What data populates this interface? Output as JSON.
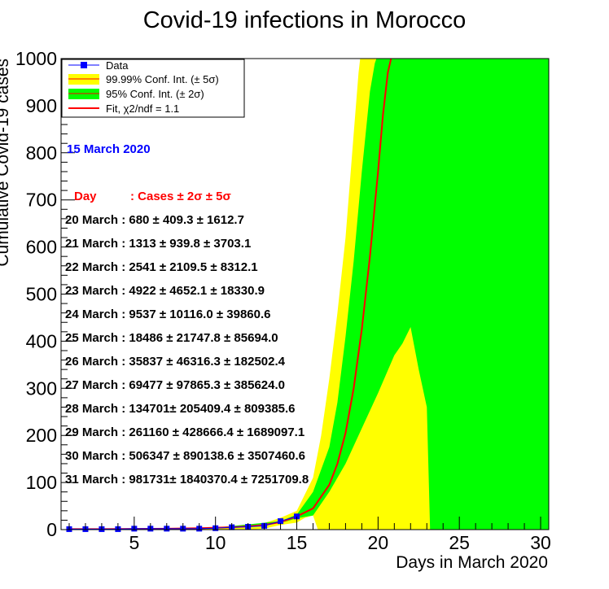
{
  "chart_data": {
    "type": "line",
    "title": "Covid-19 infections in Morocco",
    "xlabel": "Days in March 2020",
    "ylabel": "Cumulative Covid-19 cases",
    "xlim": [
      0.5,
      30.5
    ],
    "ylim": [
      0,
      1000
    ],
    "x_ticks": [
      5,
      10,
      15,
      20,
      25,
      30
    ],
    "y_ticks": [
      0,
      100,
      200,
      300,
      400,
      500,
      600,
      700,
      800,
      900,
      1000
    ],
    "grid": false,
    "legend_position": "top-left",
    "legend": [
      {
        "label": "Data",
        "kind": "marker",
        "color": "#0000ff"
      },
      {
        "label": "99.99% Conf. Int. (± 5σ)",
        "kind": "band",
        "color": "#ffff00"
      },
      {
        "label": "95% Conf. Int. (± 2σ)",
        "kind": "band",
        "color": "#00ff00"
      },
      {
        "label": "Fit, χ2/ndf = 1.1",
        "kind": "line",
        "color": "#ff0000"
      }
    ],
    "series": [
      {
        "name": "Data",
        "color": "#0000ff",
        "x": [
          1,
          2,
          3,
          4,
          5,
          6,
          7,
          8,
          9,
          10,
          11,
          12,
          13,
          14,
          15
        ],
        "y": [
          1,
          1,
          1,
          1,
          2,
          2,
          2,
          2,
          2,
          3,
          5,
          6,
          8,
          18,
          28
        ]
      },
      {
        "name": "Fit, χ2/ndf = 1.1",
        "color": "#ff0000",
        "x": [
          1,
          3,
          5,
          7,
          9,
          10,
          11,
          12,
          13,
          14,
          15,
          16,
          17,
          17.5,
          18,
          18.5,
          19,
          19.5,
          20,
          20.3,
          20.6,
          20.8
        ],
        "y": [
          1,
          1,
          1.5,
          2,
          3,
          4,
          5,
          7,
          10,
          16,
          28,
          45,
          95,
          140,
          205,
          300,
          425,
          580,
          760,
          880,
          970,
          1000
        ]
      }
    ],
    "bands": [
      {
        "name": "99.99% Conf. Int. (± 5σ)",
        "color": "#ffff00",
        "upper": {
          "x": [
            1,
            5,
            10,
            12,
            13,
            14,
            15,
            16,
            16.5,
            17,
            17.5,
            18,
            18.5,
            18.8,
            18.9
          ],
          "y": [
            2,
            2,
            5,
            10,
            14,
            25,
            40,
            110,
            200,
            320,
            460,
            620,
            840,
            970,
            1000
          ]
        },
        "lower": {
          "x": [
            1,
            5,
            10,
            12,
            13,
            14,
            15,
            15.5,
            16,
            16.3,
            16.4,
            17,
            18,
            19,
            20,
            21,
            22,
            22.5,
            23,
            23.2,
            23.3
          ],
          "y": [
            0,
            0,
            0,
            0,
            2,
            10,
            15,
            25,
            30,
            0,
            0,
            0,
            0,
            0,
            0,
            0,
            0,
            0,
            0,
            0,
            0
          ]
        }
      },
      {
        "name": "95% Conf. Int. (± 2σ)",
        "color": "#00ff00",
        "upper": {
          "x": [
            1,
            10,
            14,
            15,
            16,
            17,
            17.5,
            18,
            18.5,
            19,
            19.5,
            19.8,
            19.9
          ],
          "y": [
            1,
            4,
            18,
            32,
            80,
            175,
            270,
            410,
            570,
            760,
            930,
            990,
            1000
          ]
        },
        "lower": {
          "x": [
            1,
            10,
            14,
            15,
            16,
            17,
            18,
            19,
            20,
            21,
            21.5,
            22,
            22.5,
            23,
            23.2,
            23.3
          ],
          "y": [
            0,
            2,
            14,
            24,
            30,
            80,
            140,
            215,
            290,
            370,
            395,
            430,
            340,
            260,
            0,
            0
          ]
        }
      }
    ],
    "annotations": {
      "date": "15 March 2020",
      "header_day": "Day",
      "header_cases": ": Cases ± 2σ ± 5σ",
      "rows": [
        "20 March : 680 ± 409.3 ± 1612.7",
        "21 March : 1313 ± 939.8 ± 3703.1",
        "22 March : 2541 ± 2109.5 ± 8312.1",
        "23 March : 4922 ± 4652.1 ± 18330.9",
        "24 March : 9537 ± 10116.0 ± 39860.6",
        "25 March : 18486 ± 21747.8 ± 85694.0",
        "26 March : 35837 ± 46316.3 ± 182502.4",
        "27 March : 69477 ± 97865.3 ± 385624.0",
        "28 March : 134701± 205409.4 ± 809385.6",
        "29 March : 261160 ± 428666.4 ± 1689097.1",
        "30 March : 506347 ± 890138.6 ± 3507460.6",
        "31 March : 981731± 1840370.4 ± 7251709.8"
      ]
    }
  }
}
